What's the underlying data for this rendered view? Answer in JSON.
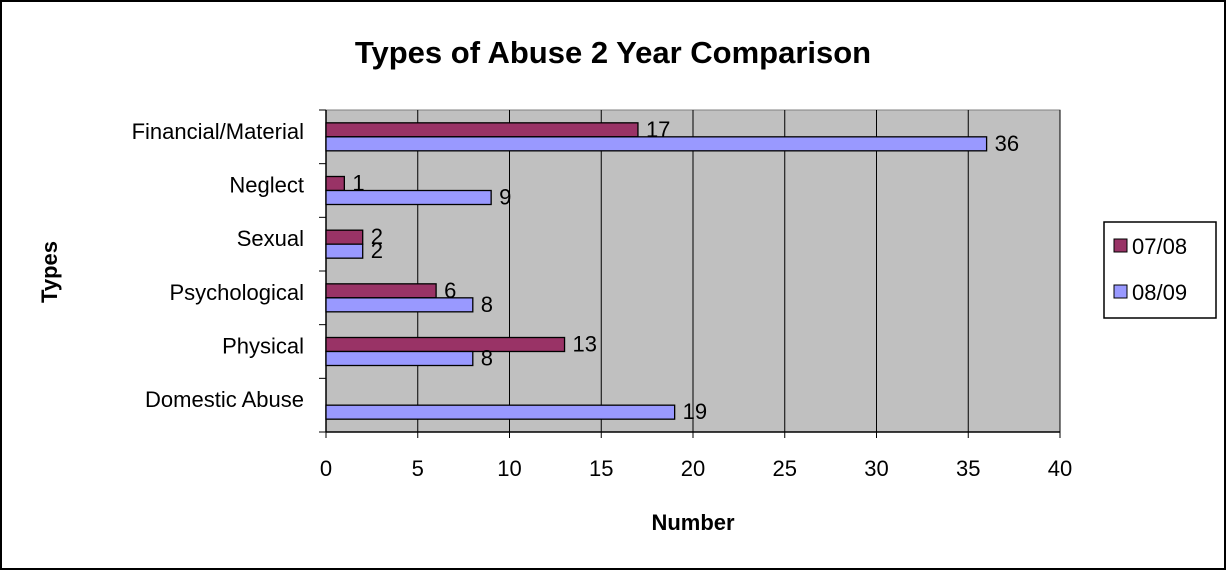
{
  "chart_data": {
    "type": "bar",
    "orientation": "horizontal",
    "title": "Types of Abuse 2 Year Comparison",
    "xlabel": "Number",
    "ylabel": "Types",
    "xlim": [
      0,
      40
    ],
    "x_ticks": [
      0,
      5,
      10,
      15,
      20,
      25,
      30,
      35,
      40
    ],
    "grid": "vertical",
    "legend_position": "right",
    "categories": [
      "Financial/Material",
      "Neglect",
      "Sexual",
      "Psychological",
      "Physical",
      "Domestic Abuse"
    ],
    "series": [
      {
        "name": "07/08",
        "color": "#993366",
        "values": [
          17,
          1,
          2,
          6,
          13,
          null
        ]
      },
      {
        "name": "08/09",
        "color": "#9999FF",
        "values": [
          36,
          9,
          2,
          8,
          8,
          19
        ]
      }
    ],
    "plot_background": "#C0C0C0"
  }
}
